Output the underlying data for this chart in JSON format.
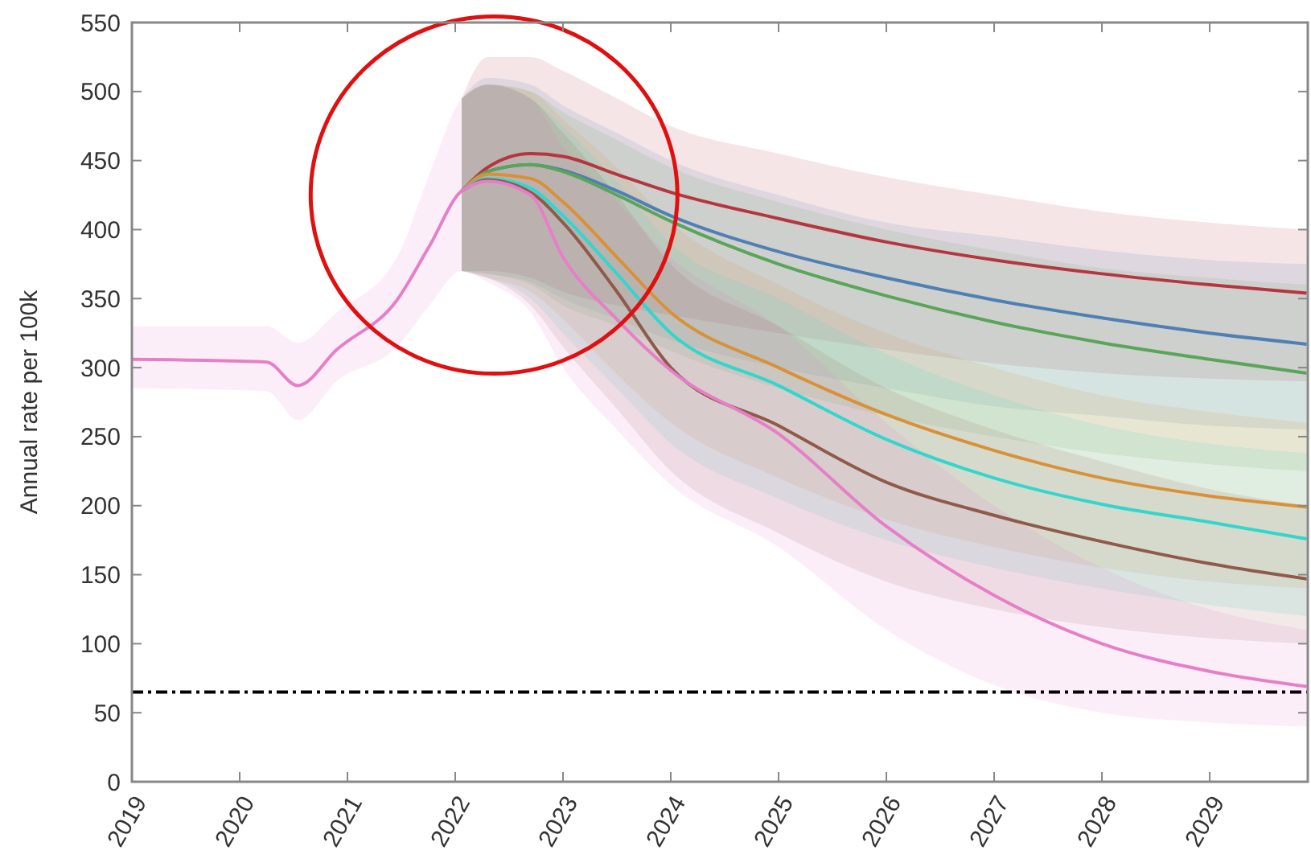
{
  "chart_data": {
    "type": "line",
    "ylabel": "Annual rate per 100k",
    "xlim": [
      2019,
      2029.91
    ],
    "xticks": [
      2019,
      2020,
      2021,
      2022,
      2023,
      2024,
      2025,
      2026,
      2027,
      2028,
      2029
    ],
    "ylim": [
      0,
      550
    ],
    "yticks": [
      0,
      50,
      100,
      150,
      200,
      250,
      300,
      350,
      400,
      450,
      500,
      550
    ],
    "grid": false,
    "line_style": "solid",
    "x": [
      2019,
      2020.25,
      2020.54,
      2020.9,
      2021.46,
      2021.76,
      2022.06,
      2022.3,
      2022.7,
      2023,
      2023.5,
      2024,
      2025,
      2026,
      2027,
      2028,
      2029,
      2029.9
    ],
    "series": [
      {
        "color": "#b5363f",
        "values": [
          null,
          null,
          null,
          null,
          null,
          null,
          428,
          445,
          455,
          453,
          440,
          427,
          408,
          391,
          378,
          368,
          360,
          354
        ],
        "lower": [
          null,
          null,
          null,
          null,
          null,
          null,
          370,
          370,
          365,
          355,
          345,
          338,
          325,
          313,
          303,
          296,
          292,
          290
        ],
        "upper": [
          null,
          null,
          null,
          null,
          null,
          null,
          495,
          525,
          525,
          515,
          495,
          475,
          455,
          438,
          425,
          413,
          405,
          400
        ]
      },
      {
        "color": "#4f7fb5",
        "values": [
          null,
          null,
          null,
          null,
          null,
          null,
          428,
          442,
          447,
          443,
          428,
          410,
          384,
          365,
          349,
          336,
          325,
          317
        ],
        "lower": [
          null,
          null,
          null,
          null,
          null,
          null,
          370,
          368,
          362,
          350,
          335,
          320,
          300,
          285,
          272,
          265,
          258,
          255
        ],
        "upper": [
          null,
          null,
          null,
          null,
          null,
          null,
          495,
          510,
          505,
          490,
          470,
          450,
          425,
          405,
          395,
          385,
          378,
          375
        ]
      },
      {
        "color": "#5aa55a",
        "values": [
          null,
          null,
          null,
          null,
          null,
          null,
          428,
          442,
          447,
          442,
          425,
          406,
          375,
          352,
          333,
          318,
          306,
          296
        ],
        "lower": [
          null,
          null,
          null,
          null,
          null,
          null,
          370,
          368,
          360,
          345,
          330,
          312,
          285,
          265,
          250,
          238,
          230,
          225
        ],
        "upper": [
          null,
          null,
          null,
          null,
          null,
          null,
          495,
          505,
          500,
          485,
          465,
          445,
          420,
          400,
          385,
          372,
          365,
          360
        ]
      },
      {
        "color": "#d99138",
        "values": [
          null,
          null,
          null,
          null,
          null,
          null,
          428,
          440,
          437,
          420,
          380,
          340,
          300,
          266,
          240,
          220,
          207,
          199
        ],
        "lower": [
          null,
          null,
          null,
          null,
          null,
          null,
          370,
          365,
          355,
          335,
          295,
          260,
          220,
          190,
          170,
          155,
          145,
          140
        ],
        "upper": [
          null,
          null,
          null,
          null,
          null,
          null,
          495,
          505,
          500,
          480,
          445,
          405,
          360,
          325,
          300,
          280,
          268,
          260
        ]
      },
      {
        "color": "#33d6cc",
        "values": [
          null,
          null,
          null,
          null,
          null,
          null,
          428,
          437,
          430,
          410,
          368,
          325,
          287,
          248,
          220,
          201,
          188,
          176
        ],
        "lower": [
          null,
          null,
          null,
          null,
          null,
          null,
          370,
          365,
          350,
          325,
          285,
          245,
          205,
          175,
          155,
          140,
          128,
          120
        ],
        "upper": [
          null,
          null,
          null,
          null,
          null,
          null,
          495,
          505,
          495,
          475,
          435,
          390,
          350,
          310,
          280,
          258,
          245,
          238
        ]
      },
      {
        "color": "#8f5a4a",
        "values": [
          null,
          null,
          null,
          null,
          null,
          null,
          428,
          436,
          427,
          405,
          355,
          300,
          258,
          217,
          193,
          174,
          158,
          147
        ],
        "lower": [
          null,
          null,
          null,
          null,
          null,
          null,
          370,
          365,
          345,
          315,
          270,
          225,
          180,
          145,
          125,
          112,
          104,
          100
        ],
        "upper": [
          null,
          null,
          null,
          null,
          null,
          null,
          495,
          505,
          495,
          470,
          425,
          375,
          330,
          285,
          255,
          232,
          212,
          200
        ]
      },
      {
        "color": "#e67fc8",
        "values": [
          306,
          304,
          287,
          313,
          349,
          388,
          428,
          435,
          425,
          380,
          335,
          298,
          252,
          185,
          135,
          100,
          80,
          69
        ],
        "lower": [
          285,
          283,
          262,
          290,
          315,
          345,
          370,
          362,
          340,
          300,
          255,
          215,
          170,
          110,
          70,
          50,
          43,
          40
        ],
        "upper": [
          330,
          330,
          318,
          340,
          380,
          440,
          495,
          505,
          495,
          460,
          420,
          380,
          330,
          260,
          200,
          155,
          125,
          110
        ]
      }
    ],
    "ref_lines": [
      {
        "axis": "y",
        "value": 65,
        "color": "#000000",
        "line_style": "dashed"
      }
    ]
  }
}
